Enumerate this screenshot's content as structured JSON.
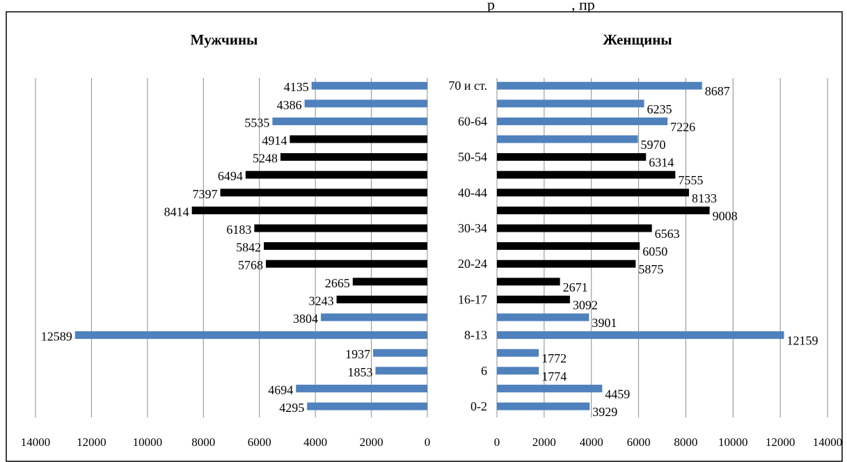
{
  "header_fragment": "р                    , пр",
  "chart_data": {
    "type": "bar",
    "orientation": "horizontal",
    "layout": "population-pyramid",
    "categories": [
      "0-2",
      "",
      "6",
      "",
      "8-13",
      "",
      "16-17",
      "",
      "20-24",
      "",
      "30-34",
      "",
      "40-44",
      "",
      "50-54",
      "",
      "60-64",
      "",
      "70 и ст."
    ],
    "series": [
      {
        "name": "Мужчины",
        "values": [
          4295,
          4694,
          1853,
          1937,
          12589,
          3804,
          3243,
          2665,
          5768,
          5842,
          6183,
          8414,
          7397,
          6494,
          5248,
          4914,
          5535,
          4386,
          4135
        ],
        "colors": [
          "#4f81bd",
          "#4f81bd",
          "#4f81bd",
          "#4f81bd",
          "#4f81bd",
          "#4f81bd",
          "#000000",
          "#000000",
          "#000000",
          "#000000",
          "#000000",
          "#000000",
          "#000000",
          "#000000",
          "#000000",
          "#000000",
          "#4f81bd",
          "#4f81bd",
          "#4f81bd"
        ]
      },
      {
        "name": "Женщины",
        "values": [
          3929,
          4459,
          1774,
          1772,
          12159,
          3901,
          3092,
          2671,
          5875,
          6050,
          6563,
          9008,
          8133,
          7555,
          6314,
          5970,
          7226,
          6235,
          8687
        ],
        "colors": [
          "#4f81bd",
          "#4f81bd",
          "#4f81bd",
          "#4f81bd",
          "#4f81bd",
          "#4f81bd",
          "#000000",
          "#000000",
          "#000000",
          "#000000",
          "#000000",
          "#000000",
          "#000000",
          "#000000",
          "#000000",
          "#4f81bd",
          "#4f81bd",
          "#4f81bd",
          "#4f81bd"
        ]
      }
    ],
    "xlim": [
      0,
      14000
    ],
    "xticks": [
      0,
      2000,
      4000,
      6000,
      8000,
      10000,
      12000,
      14000
    ],
    "grid": "vertical",
    "legend": "none"
  }
}
